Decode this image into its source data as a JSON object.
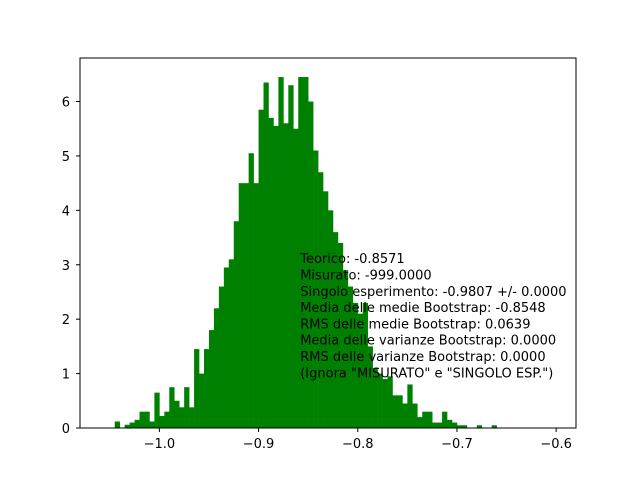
{
  "chart_data": {
    "type": "histogram",
    "bar_color": "#008000",
    "bin_start": -1.045,
    "bin_width": 0.005,
    "counts": [
      0.12,
      0.0,
      0.06,
      0.1,
      0.15,
      0.3,
      0.3,
      0.12,
      0.65,
      0.22,
      0.3,
      0.75,
      0.5,
      0.38,
      0.75,
      0.38,
      1.45,
      1.0,
      1.45,
      1.8,
      2.2,
      2.6,
      2.95,
      3.1,
      3.8,
      4.5,
      4.5,
      5.05,
      4.5,
      5.85,
      6.35,
      5.7,
      5.55,
      6.45,
      5.6,
      6.3,
      5.5,
      6.45,
      6.45,
      6.0,
      5.1,
      4.7,
      4.35,
      4.0,
      3.6,
      3.4,
      2.9,
      2.6,
      2.3,
      2.1,
      2.3,
      1.5,
      1.1,
      1.0,
      0.9,
      0.95,
      0.6,
      0.6,
      0.45,
      0.8,
      0.45,
      0.2,
      0.3,
      0.3,
      0.1,
      0.1,
      0.3,
      0.15,
      0.1,
      0.05,
      0.05,
      0.0,
      0.0,
      0.05,
      0.0,
      0.0,
      0.05
    ],
    "xlim": [
      -1.08,
      -0.58
    ],
    "ylim": [
      0,
      6.8
    ],
    "xticks": [
      -1.0,
      -0.9,
      -0.8,
      -0.7,
      -0.6
    ],
    "xtick_labels": [
      "−1.0",
      "−0.9",
      "−0.8",
      "−0.7",
      "−0.6"
    ],
    "yticks": [
      0,
      1,
      2,
      3,
      4,
      5,
      6
    ],
    "ytick_labels": [
      "0",
      "1",
      "2",
      "3",
      "4",
      "5",
      "6"
    ],
    "annotation": {
      "lines": [
        "Teorico: -0.8571",
        "Misurato: -999.0000",
        "Singolo esperimento: -0.9807 +/-  0.0000",
        "Media delle medie Bootstrap: -0.8548",
        "RMS delle medie Bootstrap:  0.0639",
        "Media delle varianze Bootstrap:  0.0000",
        "RMS delle varianze Bootstrap:  0.0000",
        "(Ignora \"MISURATO\" e \"SINGOLO ESP.\")"
      ]
    }
  }
}
